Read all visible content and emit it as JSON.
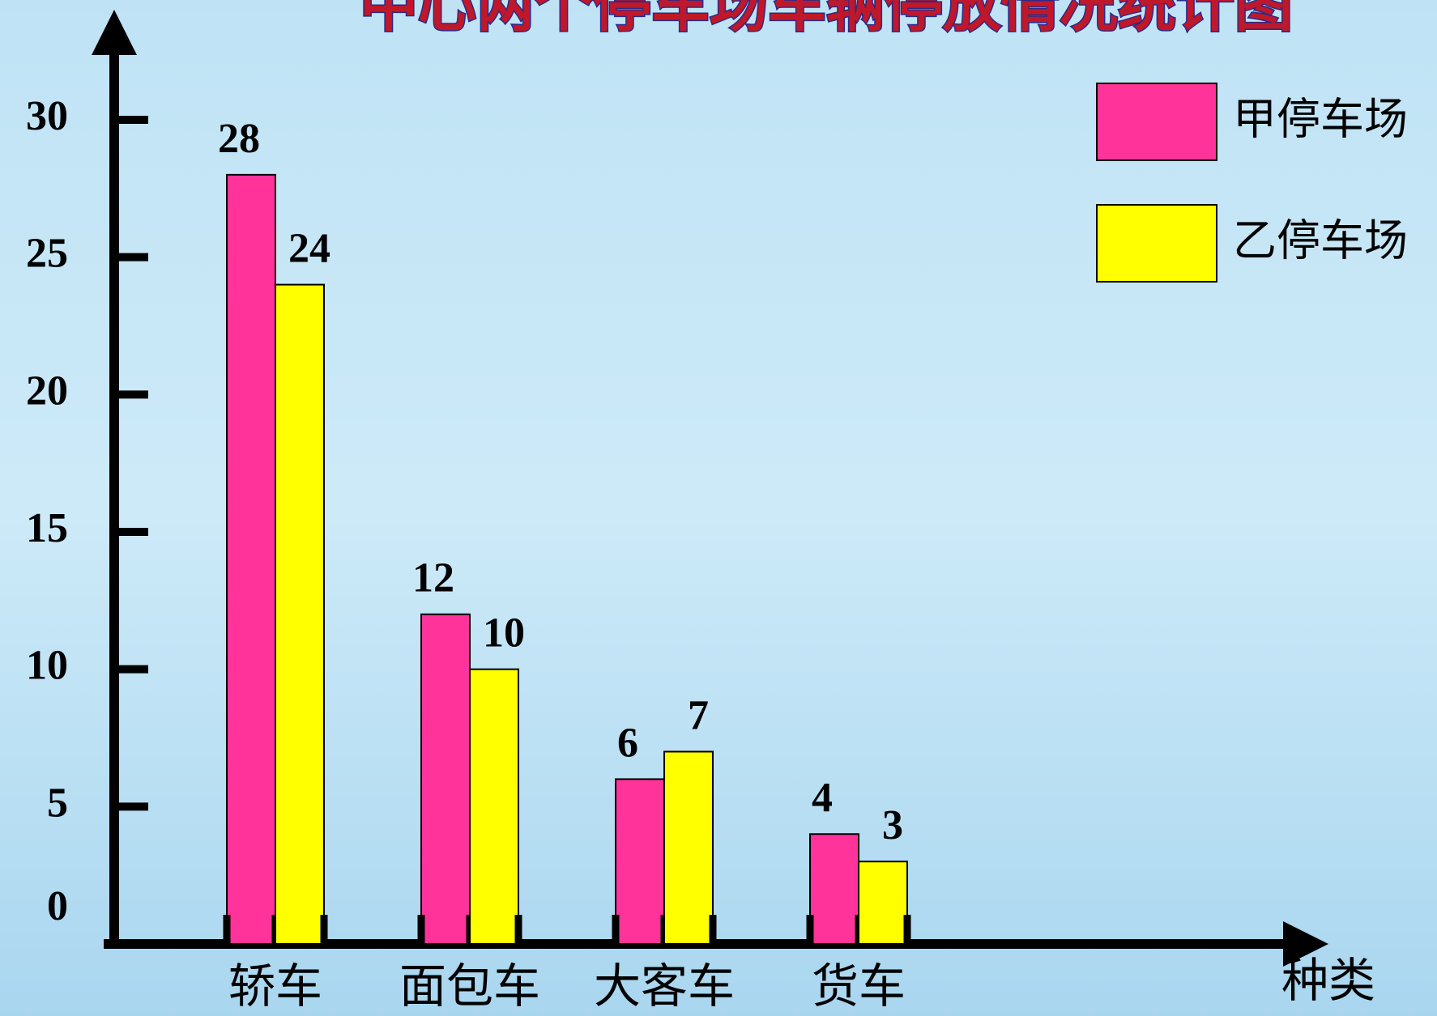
{
  "chart_data": {
    "type": "bar",
    "title": "中心两个停车场车辆停放情况统计图",
    "x_label": "种类",
    "categories": [
      "轿车",
      "面包车",
      "大客车",
      "货车"
    ],
    "series": [
      {
        "name": "甲停车场",
        "color": "#ff3399",
        "values": [
          28,
          12,
          6,
          4
        ]
      },
      {
        "name": "乙停车场",
        "color": "#ffff00",
        "values": [
          24,
          10,
          7,
          3
        ]
      }
    ],
    "ylim": [
      0,
      30
    ],
    "yticks": [
      0,
      5,
      10,
      15,
      20,
      25,
      30
    ],
    "legend": "top-right",
    "grid": false
  }
}
